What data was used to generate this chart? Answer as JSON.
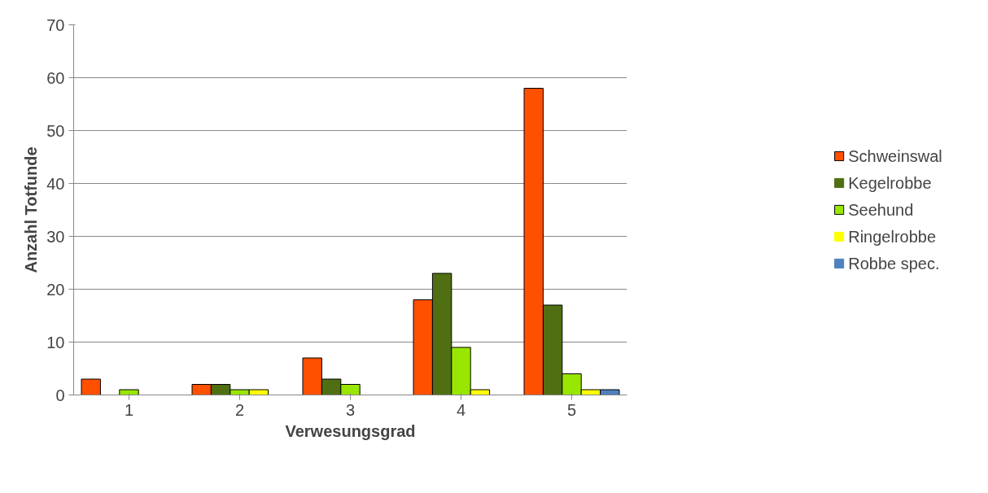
{
  "chart_data": {
    "type": "bar",
    "xlabel": "Verwesungsgrad",
    "ylabel": "Anzahl Totfunde",
    "categories": [
      "1",
      "2",
      "3",
      "4",
      "5"
    ],
    "series": [
      {
        "name": "Schweinswal",
        "color": "#ff5000",
        "values": [
          3,
          2,
          7,
          18,
          58
        ]
      },
      {
        "name": "Kegelrobbe",
        "color": "#4f6f12",
        "values": [
          0,
          2,
          3,
          23,
          17
        ]
      },
      {
        "name": "Seehund",
        "color": "#99e600",
        "values": [
          1,
          1,
          2,
          9,
          4
        ]
      },
      {
        "name": "Ringelrobbe",
        "color": "#ffff00",
        "values": [
          0,
          1,
          0,
          1,
          1
        ]
      },
      {
        "name": "Robbe spec.",
        "color": "#4f81bd",
        "values": [
          0,
          0,
          0,
          0,
          1
        ]
      }
    ],
    "ylim": [
      0,
      70
    ],
    "yticks": [
      0,
      10,
      20,
      30,
      40,
      50,
      60,
      70
    ],
    "grid": "y",
    "legend": "right"
  }
}
